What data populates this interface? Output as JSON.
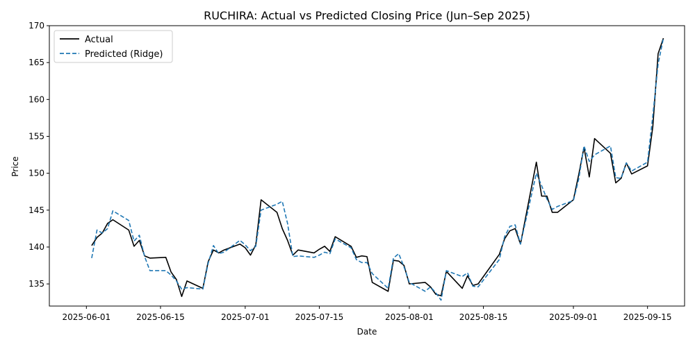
{
  "chart_data": {
    "type": "line",
    "title": "RUCHIRA: Actual vs Predicted Closing Price (Jun–Sep 2025)",
    "xlabel": "Date",
    "ylabel": "Price",
    "xlim": [
      "2025-05-25",
      "2025-09-22"
    ],
    "ylim": [
      132,
      170
    ],
    "x_ticks": [
      "2025-06-01",
      "2025-06-15",
      "2025-07-01",
      "2025-07-15",
      "2025-08-01",
      "2025-08-15",
      "2025-09-01",
      "2025-09-15"
    ],
    "y_ticks": [
      135,
      140,
      145,
      150,
      155,
      160,
      165,
      170
    ],
    "grid": false,
    "legend_position": "top-left",
    "x": [
      "2025-06-02",
      "2025-06-03",
      "2025-06-04",
      "2025-06-05",
      "2025-06-06",
      "2025-06-09",
      "2025-06-10",
      "2025-06-11",
      "2025-06-12",
      "2025-06-13",
      "2025-06-16",
      "2025-06-17",
      "2025-06-18",
      "2025-06-19",
      "2025-06-20",
      "2025-06-23",
      "2025-06-24",
      "2025-06-25",
      "2025-06-26",
      "2025-06-27",
      "2025-06-30",
      "2025-07-01",
      "2025-07-02",
      "2025-07-03",
      "2025-07-04",
      "2025-07-07",
      "2025-07-08",
      "2025-07-09",
      "2025-07-10",
      "2025-07-11",
      "2025-07-14",
      "2025-07-15",
      "2025-07-16",
      "2025-07-17",
      "2025-07-18",
      "2025-07-21",
      "2025-07-22",
      "2025-07-23",
      "2025-07-24",
      "2025-07-25",
      "2025-07-28",
      "2025-07-29",
      "2025-07-30",
      "2025-07-31",
      "2025-08-01",
      "2025-08-04",
      "2025-08-05",
      "2025-08-06",
      "2025-08-07",
      "2025-08-08",
      "2025-08-11",
      "2025-08-12",
      "2025-08-13",
      "2025-08-14",
      "2025-08-18",
      "2025-08-19",
      "2025-08-20",
      "2025-08-21",
      "2025-08-22",
      "2025-08-25",
      "2025-08-26",
      "2025-08-27",
      "2025-08-28",
      "2025-08-29",
      "2025-09-01",
      "2025-09-02",
      "2025-09-03",
      "2025-09-04",
      "2025-09-05",
      "2025-09-08",
      "2025-09-09",
      "2025-09-10",
      "2025-09-11",
      "2025-09-12",
      "2025-09-15",
      "2025-09-16",
      "2025-09-17",
      "2025-09-18"
    ],
    "series": [
      {
        "name": "Actual",
        "color": "#000000",
        "style": "solid",
        "values": [
          140.2,
          141.3,
          141.9,
          143.2,
          143.7,
          142.3,
          140.1,
          140.9,
          138.8,
          138.5,
          138.6,
          136.6,
          135.6,
          133.3,
          135.4,
          134.4,
          138.0,
          139.6,
          139.2,
          139.6,
          140.4,
          139.9,
          138.9,
          140.3,
          146.4,
          144.7,
          142.5,
          140.9,
          138.9,
          139.6,
          139.2,
          139.7,
          140.1,
          139.4,
          141.4,
          140.1,
          138.6,
          138.8,
          138.7,
          135.2,
          134.0,
          138.2,
          138.1,
          137.5,
          135.0,
          135.2,
          134.6,
          133.6,
          133.4,
          136.7,
          134.4,
          136.1,
          134.8,
          135.0,
          139.0,
          141.1,
          142.2,
          142.5,
          140.4,
          151.5,
          146.9,
          146.9,
          144.7,
          144.7,
          146.4,
          149.8,
          153.5,
          149.5,
          154.7,
          152.7,
          148.7,
          149.3,
          151.4,
          149.9,
          151.0,
          156.3,
          166.2,
          168.3
        ]
      },
      {
        "name": "Predicted (Ridge)",
        "color": "#1f77b4",
        "style": "dashed",
        "values": [
          138.5,
          142.3,
          141.9,
          142.5,
          144.9,
          143.6,
          140.8,
          141.6,
          138.7,
          136.8,
          136.8,
          136.2,
          135.4,
          134.3,
          134.5,
          134.3,
          137.8,
          140.2,
          139.1,
          139.3,
          140.9,
          140.3,
          139.5,
          140.1,
          145.0,
          145.8,
          146.2,
          143.2,
          138.7,
          138.8,
          138.6,
          138.9,
          139.3,
          139.1,
          141.1,
          139.9,
          138.3,
          137.9,
          137.9,
          136.4,
          134.4,
          138.5,
          139.1,
          137.3,
          135.2,
          134.0,
          134.6,
          133.8,
          132.8,
          136.8,
          136.0,
          136.5,
          134.7,
          134.6,
          138.3,
          141.4,
          142.8,
          143.0,
          140.4,
          150.0,
          148.3,
          146.5,
          145.1,
          145.5,
          146.3,
          149.2,
          153.7,
          151.6,
          152.5,
          153.7,
          149.4,
          149.3,
          151.4,
          150.3,
          151.5,
          157.8,
          164.8,
          168.3
        ]
      }
    ]
  }
}
